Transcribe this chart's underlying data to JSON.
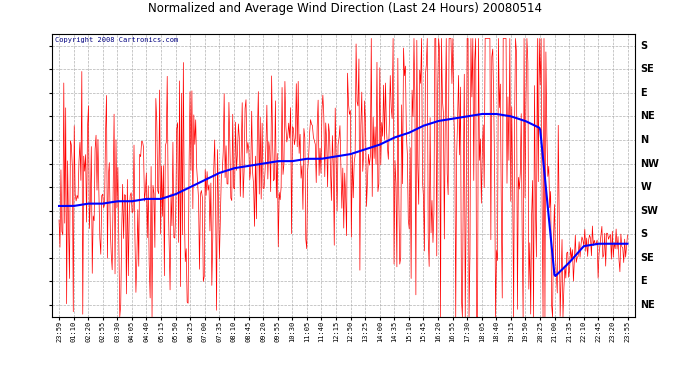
{
  "title": "Normalized and Average Wind Direction (Last 24 Hours) 20080514",
  "copyright": "Copyright 2008 Cartronics.com",
  "background_color": "#ffffff",
  "plot_bg_color": "#ffffff",
  "grid_color": "#aaaaaa",
  "title_color": "#000000",
  "ytick_labels": [
    "S",
    "SE",
    "E",
    "NE",
    "N",
    "NW",
    "W",
    "SW",
    "S",
    "SE",
    "E",
    "NE"
  ],
  "ytick_values": [
    0,
    1,
    2,
    3,
    4,
    5,
    6,
    7,
    8,
    9,
    10,
    11
  ],
  "xtick_labels": [
    "23:59",
    "01:10",
    "02:20",
    "02:55",
    "03:30",
    "04:05",
    "04:40",
    "05:15",
    "05:50",
    "06:25",
    "07:00",
    "07:35",
    "08:10",
    "08:45",
    "09:20",
    "09:55",
    "10:30",
    "11:05",
    "11:40",
    "12:15",
    "12:50",
    "13:25",
    "14:00",
    "14:35",
    "15:10",
    "15:45",
    "16:20",
    "16:55",
    "17:30",
    "18:05",
    "18:40",
    "19:15",
    "19:50",
    "20:25",
    "21:00",
    "21:35",
    "22:10",
    "22:45",
    "23:20",
    "23:55"
  ],
  "red_color": "#ff0000",
  "blue_color": "#0000ff",
  "figsize": [
    6.9,
    3.75
  ],
  "dpi": 100,
  "avg_values": [
    6.8,
    6.8,
    6.7,
    6.7,
    6.6,
    6.6,
    6.5,
    6.5,
    6.3,
    6.0,
    5.7,
    5.4,
    5.2,
    5.1,
    5.0,
    4.9,
    4.9,
    4.8,
    4.8,
    4.7,
    4.6,
    4.4,
    4.2,
    3.9,
    3.7,
    3.4,
    3.2,
    3.1,
    3.0,
    2.9,
    2.9,
    3.0,
    3.2,
    3.5,
    9.8,
    9.2,
    8.5,
    8.4,
    8.4,
    8.4
  ],
  "noise_scales": [
    1.2,
    1.2,
    1.2,
    1.2,
    1.2,
    1.2,
    1.2,
    1.2,
    1.2,
    1.2,
    1.0,
    1.0,
    0.8,
    0.8,
    0.8,
    0.8,
    0.8,
    0.8,
    0.8,
    0.8,
    0.8,
    1.0,
    1.0,
    1.2,
    1.8,
    2.2,
    2.5,
    2.5,
    2.5,
    2.5,
    2.5,
    2.8,
    3.0,
    3.2,
    1.5,
    0.3,
    0.2,
    0.2,
    0.2,
    0.2
  ]
}
